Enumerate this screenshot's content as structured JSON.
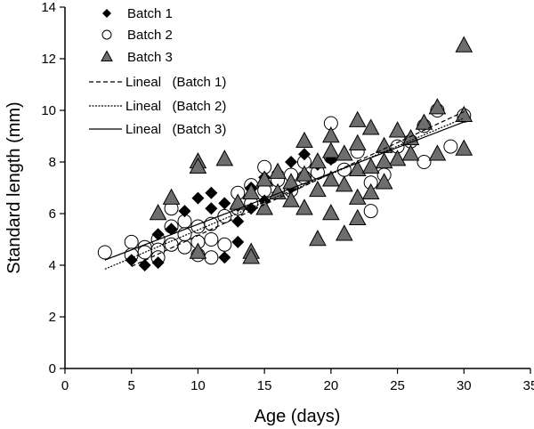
{
  "chart_data": {
    "type": "scatter",
    "xlabel": "Age (days)",
    "ylabel": "Standard length (mm)",
    "xlim": [
      0,
      35
    ],
    "ylim": [
      0,
      14
    ],
    "xticks": [
      0,
      5,
      10,
      15,
      20,
      25,
      30,
      35
    ],
    "yticks": [
      0,
      2,
      4,
      6,
      8,
      10,
      12,
      14
    ],
    "grid": false,
    "legend_placement": "top-left",
    "colors": {
      "batch1": "#000000",
      "batch2": "#ffffff",
      "batch3": "#6e6e6e"
    },
    "series": [
      {
        "name": "Batch 1",
        "marker": "diamond",
        "points": [
          [
            5,
            4.2
          ],
          [
            6,
            4.0
          ],
          [
            7,
            4.1
          ],
          [
            7,
            5.2
          ],
          [
            8,
            5.4
          ],
          [
            9,
            6.1
          ],
          [
            10,
            6.6
          ],
          [
            11,
            6.8
          ],
          [
            11,
            6.2
          ],
          [
            12,
            4.3
          ],
          [
            12,
            6.4
          ],
          [
            13,
            4.9
          ],
          [
            13,
            5.7
          ],
          [
            14,
            7.0
          ],
          [
            15,
            7.4
          ],
          [
            16,
            7.6
          ],
          [
            17,
            8.0
          ],
          [
            18,
            8.3
          ],
          [
            19,
            7.9
          ],
          [
            20,
            8.1
          ],
          [
            17,
            7.0
          ],
          [
            16,
            6.8
          ],
          [
            15,
            6.5
          ],
          [
            14,
            6.2
          ],
          [
            13,
            6.3
          ]
        ]
      },
      {
        "name": "Batch 2",
        "marker": "circle",
        "points": [
          [
            3,
            4.5
          ],
          [
            5,
            4.9
          ],
          [
            5,
            4.4
          ],
          [
            6,
            4.7
          ],
          [
            6,
            4.5
          ],
          [
            7,
            5.0
          ],
          [
            7,
            4.6
          ],
          [
            7,
            4.3
          ],
          [
            8,
            6.2
          ],
          [
            8,
            5.5
          ],
          [
            8,
            4.8
          ],
          [
            9,
            5.7
          ],
          [
            9,
            5.2
          ],
          [
            9,
            4.7
          ],
          [
            10,
            5.5
          ],
          [
            10,
            4.9
          ],
          [
            10,
            4.4
          ],
          [
            11,
            5.0
          ],
          [
            11,
            4.3
          ],
          [
            11,
            5.6
          ],
          [
            12,
            4.8
          ],
          [
            12,
            5.9
          ],
          [
            13,
            6.8
          ],
          [
            13,
            6.2
          ],
          [
            14,
            7.1
          ],
          [
            14,
            6.4
          ],
          [
            15,
            7.8
          ],
          [
            15,
            6.9
          ],
          [
            16,
            7.3
          ],
          [
            17,
            7.5
          ],
          [
            17,
            6.9
          ],
          [
            18,
            8.0
          ],
          [
            18,
            7.4
          ],
          [
            19,
            7.6
          ],
          [
            20,
            9.5
          ],
          [
            20,
            8.2
          ],
          [
            21,
            7.7
          ],
          [
            22,
            8.4
          ],
          [
            23,
            6.1
          ],
          [
            23,
            7.2
          ],
          [
            24,
            7.5
          ],
          [
            25,
            8.6
          ],
          [
            26,
            8.8
          ],
          [
            27,
            9.4
          ],
          [
            27,
            8.0
          ],
          [
            28,
            10.0
          ],
          [
            29,
            8.6
          ],
          [
            30,
            9.8
          ]
        ]
      },
      {
        "name": "Batch 3",
        "marker": "triangle",
        "points": [
          [
            7,
            6.0
          ],
          [
            8,
            6.6
          ],
          [
            10,
            8.0
          ],
          [
            10,
            7.8
          ],
          [
            12,
            8.1
          ],
          [
            10,
            4.5
          ],
          [
            14,
            4.5
          ],
          [
            14,
            4.3
          ],
          [
            13,
            6.4
          ],
          [
            14,
            6.8
          ],
          [
            15,
            7.3
          ],
          [
            15,
            6.2
          ],
          [
            16,
            7.6
          ],
          [
            16,
            6.8
          ],
          [
            17,
            7.2
          ],
          [
            17,
            6.5
          ],
          [
            18,
            8.8
          ],
          [
            18,
            7.5
          ],
          [
            18,
            6.2
          ],
          [
            19,
            8.0
          ],
          [
            19,
            6.9
          ],
          [
            20,
            9.0
          ],
          [
            20,
            8.4
          ],
          [
            20,
            7.3
          ],
          [
            20,
            6.0
          ],
          [
            21,
            8.3
          ],
          [
            21,
            7.1
          ],
          [
            21,
            5.2
          ],
          [
            22,
            9.6
          ],
          [
            22,
            8.7
          ],
          [
            22,
            7.7
          ],
          [
            22,
            6.6
          ],
          [
            23,
            9.3
          ],
          [
            23,
            7.8
          ],
          [
            23,
            6.8
          ],
          [
            24,
            8.6
          ],
          [
            24,
            7.2
          ],
          [
            25,
            9.2
          ],
          [
            25,
            8.1
          ],
          [
            26,
            8.9
          ],
          [
            26,
            8.3
          ],
          [
            27,
            9.5
          ],
          [
            28,
            10.1
          ],
          [
            28,
            8.3
          ],
          [
            30,
            12.5
          ],
          [
            30,
            9.8
          ],
          [
            30,
            8.5
          ],
          [
            19,
            5.0
          ],
          [
            24,
            8.0
          ],
          [
            22,
            5.8
          ]
        ]
      }
    ],
    "fits": [
      {
        "name": "Lineal   (Batch 1)",
        "style": "dashed",
        "x": [
          5,
          30
        ],
        "y": [
          3.95,
          9.95
        ]
      },
      {
        "name": "Lineal   (Batch 2)",
        "style": "dotted",
        "x": [
          3,
          30
        ],
        "y": [
          3.85,
          9.7
        ]
      },
      {
        "name": "Lineal   (Batch 3)",
        "style": "solid",
        "x": [
          3,
          30
        ],
        "y": [
          4.2,
          9.55
        ]
      }
    ]
  }
}
